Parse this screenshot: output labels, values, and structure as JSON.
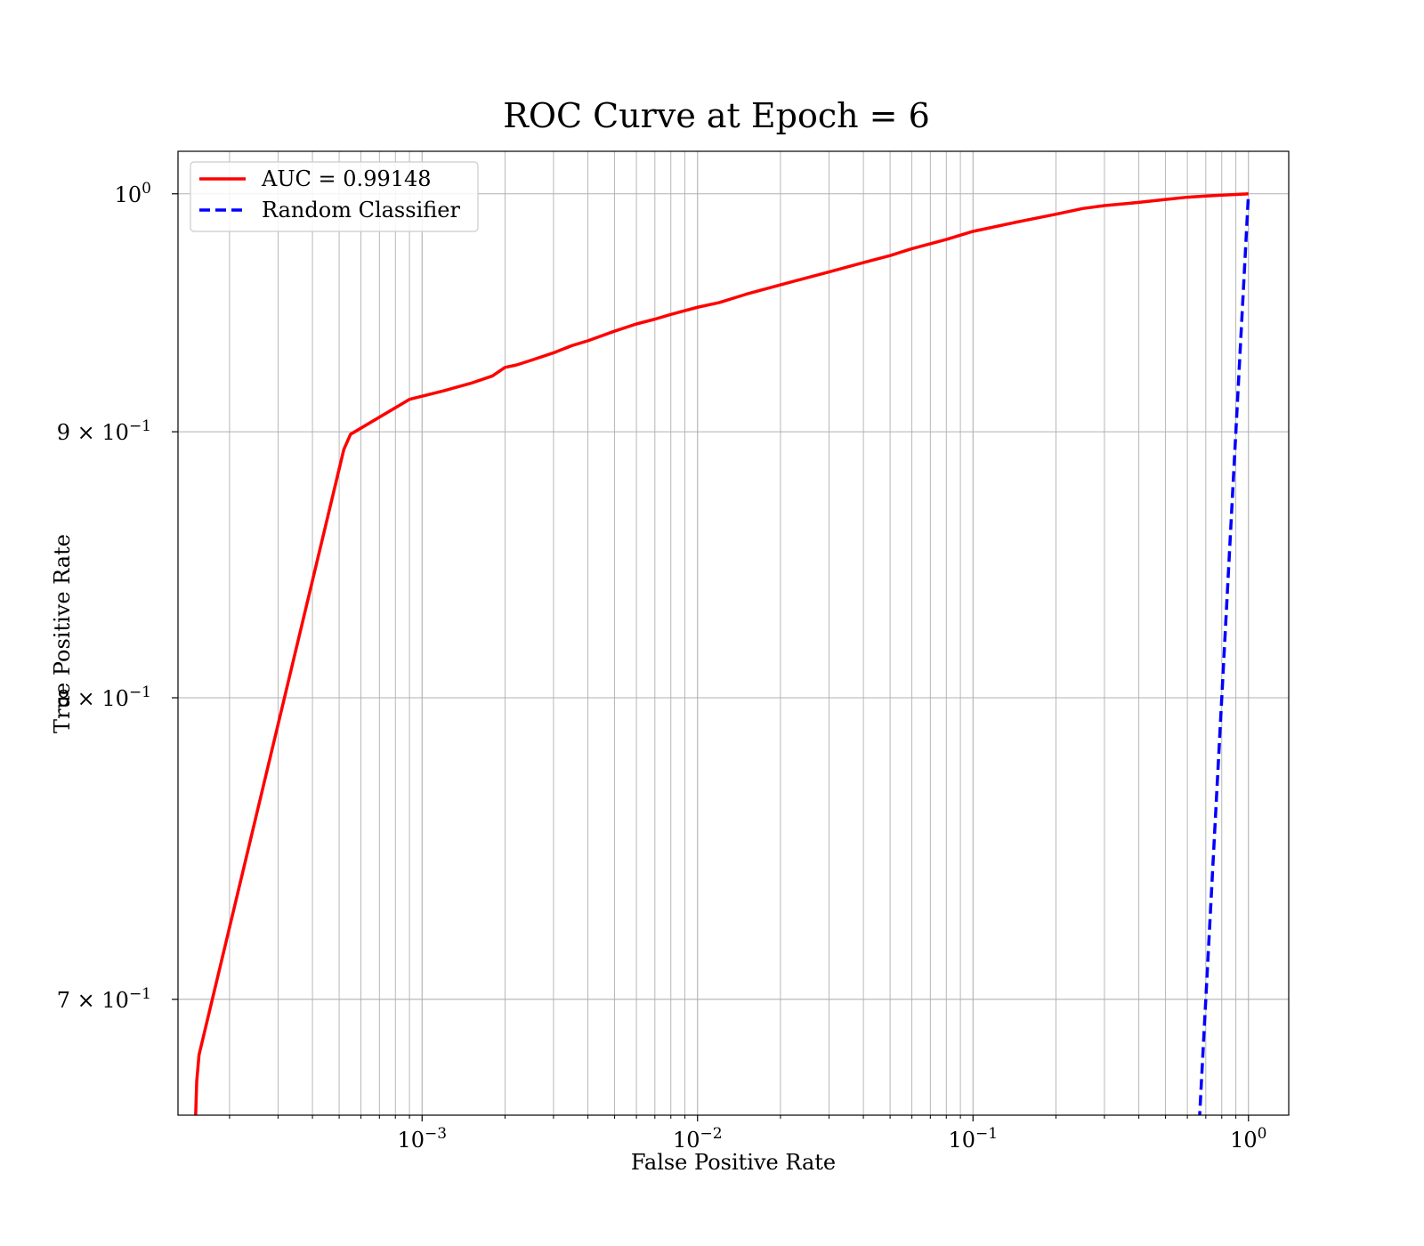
{
  "chart_data": {
    "type": "line",
    "title": "ROC Curve at Epoch = 6",
    "xlabel": "False Positive Rate",
    "ylabel": "True Positive Rate",
    "xscale": "log",
    "yscale": "log",
    "xlim": [
      0.00013,
      1.4
    ],
    "ylim": [
      0.665,
      1.019
    ],
    "grid": true,
    "legend": "top-left",
    "x_ticks": [
      {
        "value": 0.001,
        "base": "10",
        "exp": "−3"
      },
      {
        "value": 0.01,
        "base": "10",
        "exp": "−2"
      },
      {
        "value": 0.1,
        "base": "10",
        "exp": "−1"
      },
      {
        "value": 1,
        "base": "10",
        "exp": "0"
      }
    ],
    "y_ticks": [
      {
        "value": 1.0,
        "base": "10",
        "exp": "0"
      },
      {
        "value": 0.9,
        "base": "9 × 10",
        "exp": "−1"
      },
      {
        "value": 0.8,
        "base": "8 × 10",
        "exp": "−1"
      },
      {
        "value": 0.7,
        "base": "7 × 10",
        "exp": "−1"
      }
    ],
    "series": [
      {
        "name": "AUC = 0.99148",
        "color": "#ff0000",
        "style": "solid",
        "x": [
          0.00015,
          0.000152,
          0.000155,
          0.00052,
          0.00055,
          0.0009,
          0.0012,
          0.0015,
          0.0018,
          0.002,
          0.0022,
          0.0025,
          0.003,
          0.0035,
          0.004,
          0.005,
          0.006,
          0.007,
          0.008,
          0.01,
          0.012,
          0.015,
          0.02,
          0.025,
          0.03,
          0.04,
          0.05,
          0.06,
          0.08,
          0.1,
          0.15,
          0.2,
          0.25,
          0.3,
          0.4,
          0.5,
          0.6,
          0.7,
          0.8,
          0.9,
          1.0
        ],
        "y": [
          0.66,
          0.675,
          0.683,
          0.893,
          0.899,
          0.913,
          0.9165,
          0.9195,
          0.9225,
          0.926,
          0.927,
          0.929,
          0.932,
          0.935,
          0.937,
          0.941,
          0.944,
          0.946,
          0.948,
          0.951,
          0.953,
          0.9565,
          0.9605,
          0.9635,
          0.966,
          0.97,
          0.973,
          0.976,
          0.98,
          0.9835,
          0.988,
          0.991,
          0.9935,
          0.9948,
          0.9962,
          0.9975,
          0.9985,
          0.999,
          0.9994,
          0.9997,
          1.0
        ]
      },
      {
        "name": "Random Classifier",
        "color": "#0000ff",
        "style": "dashed",
        "x": [
          0.64,
          0.7,
          0.8,
          0.9,
          1.0
        ],
        "y": [
          0.64,
          0.7,
          0.8,
          0.9,
          1.0
        ]
      }
    ]
  }
}
